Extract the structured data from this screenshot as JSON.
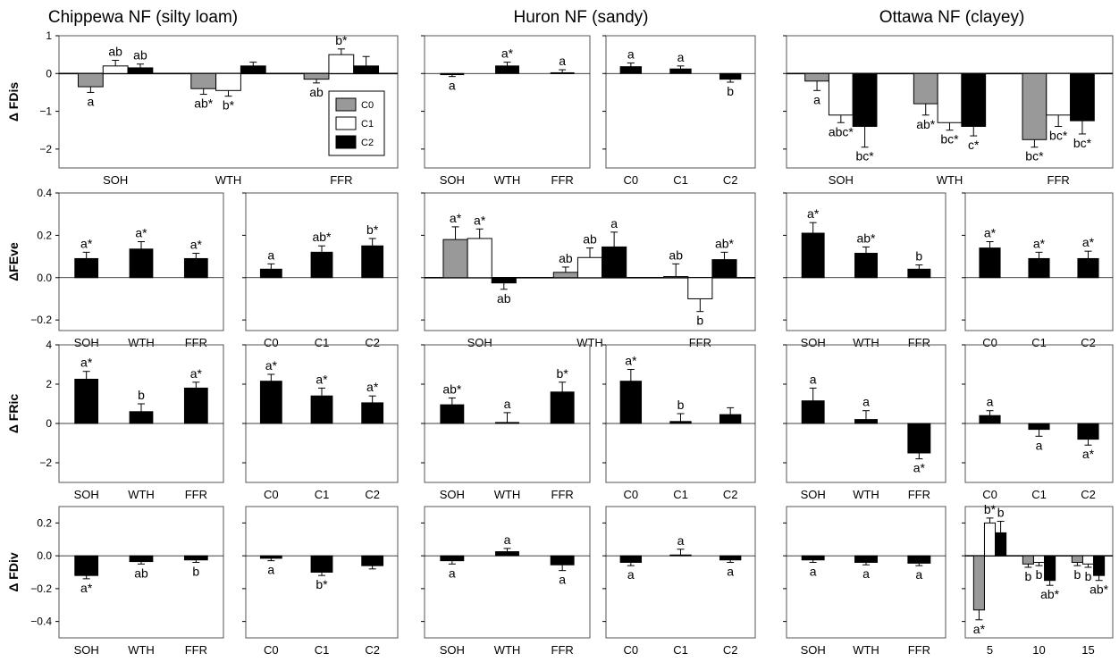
{
  "columns": [
    {
      "title": "Chippewa NF (silty loam)"
    },
    {
      "title": "Huron NF (sandy)"
    },
    {
      "title": "Ottawa NF (clayey)"
    }
  ],
  "colors": {
    "C0": "#999999",
    "C1": "#ffffff",
    "C2": "#000000"
  },
  "legend": {
    "entries": [
      "C0",
      "C1",
      "C2"
    ],
    "placement": "inside top-right of Chippewa FDis panel"
  },
  "chart_data": [
    {
      "id": "chip-fdis",
      "type": "bar",
      "ylabel": "Δ FDis",
      "ylim": [
        -2.5,
        1
      ],
      "yticks": [
        "1",
        "0",
        "−1",
        "−2"
      ],
      "categories": [
        "SOH",
        "WTH",
        "FFR"
      ],
      "grouped": true,
      "series": [
        {
          "name": "C0",
          "values": [
            -0.35,
            -0.4,
            -0.15
          ],
          "err": [
            0.15,
            0.15,
            0.1
          ],
          "labels": [
            "a",
            "ab*",
            "ab"
          ]
        },
        {
          "name": "C1",
          "values": [
            0.2,
            -0.45,
            0.5
          ],
          "err": [
            0.15,
            0.15,
            0.15
          ],
          "labels": [
            "ab",
            "b*",
            "b*"
          ]
        },
        {
          "name": "C2",
          "values": [
            0.15,
            0.2,
            0.2
          ],
          "err": [
            0.1,
            0.1,
            0.25
          ],
          "labels": [
            "ab",
            "",
            ""
          ]
        }
      ]
    },
    {
      "id": "huron-fdis-trt",
      "type": "bar",
      "ylim": [
        -2.5,
        1
      ],
      "categories": [
        "SOH",
        "WTH",
        "FFR"
      ],
      "series": [
        {
          "values": [
            -0.03,
            0.2,
            0.02
          ],
          "err": [
            0.05,
            0.1,
            0.08
          ],
          "labels": [
            "a",
            "a*",
            "a"
          ]
        }
      ]
    },
    {
      "id": "huron-fdis-cut",
      "type": "bar",
      "ylim": [
        -2.5,
        1
      ],
      "categories": [
        "C0",
        "C1",
        "C2"
      ],
      "series": [
        {
          "values": [
            0.18,
            0.12,
            -0.15
          ],
          "err": [
            0.1,
            0.08,
            0.08
          ],
          "labels": [
            "a",
            "a",
            "b"
          ]
        }
      ]
    },
    {
      "id": "ottawa-fdis",
      "type": "bar",
      "ylim": [
        -2.5,
        1
      ],
      "categories": [
        "SOH",
        "WTH",
        "FFR"
      ],
      "grouped": true,
      "series": [
        {
          "name": "C0",
          "values": [
            -0.2,
            -0.8,
            -1.75
          ],
          "err": [
            0.25,
            0.3,
            0.2
          ],
          "labels": [
            "a",
            "ab*",
            "bc*"
          ]
        },
        {
          "name": "C1",
          "values": [
            -1.1,
            -1.3,
            -1.1
          ],
          "err": [
            0.2,
            0.2,
            0.3
          ],
          "labels": [
            "abc*",
            "bc*",
            "bc*"
          ]
        },
        {
          "name": "C2",
          "values": [
            -1.4,
            -1.4,
            -1.25
          ],
          "err": [
            0.55,
            0.25,
            0.35
          ],
          "labels": [
            "bc*",
            "c*",
            "bc*"
          ]
        }
      ]
    },
    {
      "id": "chip-feve-trt",
      "type": "bar",
      "ylabel": "ΔFEve",
      "ylim": [
        -0.25,
        0.4
      ],
      "yticks": [
        "0.4",
        "0.2",
        "0.0",
        "−0.2"
      ],
      "categories": [
        "SOH",
        "WTH",
        "FFR"
      ],
      "series": [
        {
          "values": [
            0.09,
            0.135,
            0.09
          ],
          "err": [
            0.03,
            0.035,
            0.025
          ],
          "labels": [
            "a*",
            "a*",
            "a*"
          ]
        }
      ]
    },
    {
      "id": "chip-feve-cut",
      "type": "bar",
      "ylim": [
        -0.25,
        0.4
      ],
      "categories": [
        "C0",
        "C1",
        "C2"
      ],
      "series": [
        {
          "values": [
            0.04,
            0.12,
            0.15
          ],
          "err": [
            0.025,
            0.03,
            0.035
          ],
          "labels": [
            "a",
            "ab*",
            "b*"
          ]
        }
      ]
    },
    {
      "id": "huron-feve",
      "type": "bar",
      "ylim": [
        -0.25,
        0.4
      ],
      "categories": [
        "SOH",
        "WTH",
        "FFR"
      ],
      "grouped": true,
      "series": [
        {
          "name": "C0",
          "values": [
            0.18,
            0.025,
            0.005
          ],
          "err": [
            0.06,
            0.025,
            0.06
          ],
          "labels": [
            "a*",
            "ab",
            "ab"
          ]
        },
        {
          "name": "C1",
          "values": [
            0.185,
            0.095,
            -0.1
          ],
          "err": [
            0.045,
            0.045,
            0.06
          ],
          "labels": [
            "a*",
            "ab",
            "b"
          ]
        },
        {
          "name": "C2",
          "values": [
            -0.025,
            0.145,
            0.085
          ],
          "err": [
            0.03,
            0.07,
            0.035
          ],
          "labels": [
            "ab",
            "a",
            "ab*"
          ]
        }
      ]
    },
    {
      "id": "ottawa-feve-trt",
      "type": "bar",
      "ylim": [
        -0.25,
        0.4
      ],
      "categories": [
        "SOH",
        "WTH",
        "FFR"
      ],
      "series": [
        {
          "values": [
            0.21,
            0.115,
            0.04
          ],
          "err": [
            0.05,
            0.03,
            0.02
          ],
          "labels": [
            "a*",
            "ab*",
            "b"
          ]
        }
      ]
    },
    {
      "id": "ottawa-feve-cut",
      "type": "bar",
      "ylim": [
        -0.25,
        0.4
      ],
      "categories": [
        "C0",
        "C1",
        "C2"
      ],
      "series": [
        {
          "values": [
            0.14,
            0.09,
            0.09
          ],
          "err": [
            0.03,
            0.03,
            0.035
          ],
          "labels": [
            "a*",
            "a*",
            "a*"
          ]
        }
      ]
    },
    {
      "id": "chip-fric-trt",
      "type": "bar",
      "ylabel": "Δ FRic",
      "ylim": [
        -3,
        4
      ],
      "yticks": [
        "4",
        "2",
        "0",
        "−2"
      ],
      "categories": [
        "SOH",
        "WTH",
        "FFR"
      ],
      "series": [
        {
          "values": [
            2.25,
            0.6,
            1.8
          ],
          "err": [
            0.4,
            0.4,
            0.3
          ],
          "labels": [
            "a*",
            "b",
            "a*"
          ]
        }
      ]
    },
    {
      "id": "chip-fric-cut",
      "type": "bar",
      "ylim": [
        -3,
        4
      ],
      "categories": [
        "C0",
        "C1",
        "C2"
      ],
      "series": [
        {
          "values": [
            2.15,
            1.4,
            1.05
          ],
          "err": [
            0.35,
            0.4,
            0.35
          ],
          "labels": [
            "a*",
            "a*",
            "a*"
          ]
        }
      ]
    },
    {
      "id": "huron-fric-trt",
      "type": "bar",
      "ylim": [
        -3,
        4
      ],
      "categories": [
        "SOH",
        "WTH",
        "FFR"
      ],
      "series": [
        {
          "values": [
            0.95,
            0.05,
            1.6
          ],
          "err": [
            0.35,
            0.5,
            0.5
          ],
          "labels": [
            "ab*",
            "a",
            "b*"
          ]
        }
      ]
    },
    {
      "id": "huron-fric-cut",
      "type": "bar",
      "ylim": [
        -3,
        4
      ],
      "categories": [
        "C0",
        "C1",
        "C2"
      ],
      "series": [
        {
          "values": [
            2.15,
            0.1,
            0.45
          ],
          "err": [
            0.6,
            0.4,
            0.35
          ],
          "labels": [
            "a*",
            "b",
            ""
          ]
        }
      ]
    },
    {
      "id": "ottawa-fric-trt",
      "type": "bar",
      "ylim": [
        -3,
        4
      ],
      "categories": [
        "SOH",
        "WTH",
        "FFR"
      ],
      "series": [
        {
          "values": [
            1.15,
            0.2,
            -1.5
          ],
          "err": [
            0.65,
            0.45,
            0.3
          ],
          "labels": [
            "a",
            "a",
            "a*"
          ]
        }
      ]
    },
    {
      "id": "ottawa-fric-cut",
      "type": "bar",
      "ylim": [
        -3,
        4
      ],
      "categories": [
        "C0",
        "C1",
        "C2"
      ],
      "series": [
        {
          "values": [
            0.4,
            -0.3,
            -0.8
          ],
          "err": [
            0.25,
            0.35,
            0.3
          ],
          "labels": [
            "a",
            "a",
            "a*"
          ]
        }
      ]
    },
    {
      "id": "chip-fdiv-trt",
      "type": "bar",
      "ylabel": "Δ FDiv",
      "ylim": [
        -0.5,
        0.3
      ],
      "yticks": [
        "0.2",
        "0.0",
        "−0.2",
        "−0.4"
      ],
      "categories": [
        "SOH",
        "WTH",
        "FFR"
      ],
      "series": [
        {
          "values": [
            -0.12,
            -0.035,
            -0.025
          ],
          "err": [
            0.02,
            0.015,
            0.015
          ],
          "labels": [
            "a*",
            "ab",
            "b"
          ]
        }
      ]
    },
    {
      "id": "chip-fdiv-cut",
      "type": "bar",
      "ylim": [
        -0.5,
        0.3
      ],
      "categories": [
        "C0",
        "C1",
        "C2"
      ],
      "series": [
        {
          "values": [
            -0.015,
            -0.1,
            -0.06
          ],
          "err": [
            0.015,
            0.02,
            0.02
          ],
          "labels": [
            "a",
            "b*",
            ""
          ]
        }
      ]
    },
    {
      "id": "huron-fdiv-trt",
      "type": "bar",
      "ylim": [
        -0.5,
        0.3
      ],
      "categories": [
        "SOH",
        "WTH",
        "FFR"
      ],
      "series": [
        {
          "values": [
            -0.03,
            0.025,
            -0.055
          ],
          "err": [
            0.02,
            0.02,
            0.035
          ],
          "labels": [
            "a",
            "a",
            "a"
          ]
        }
      ]
    },
    {
      "id": "huron-fdiv-cut",
      "type": "bar",
      "ylim": [
        -0.5,
        0.3
      ],
      "categories": [
        "C0",
        "C1",
        "C2"
      ],
      "series": [
        {
          "values": [
            -0.04,
            0.005,
            -0.025
          ],
          "err": [
            0.02,
            0.035,
            0.015
          ],
          "labels": [
            "a",
            "a",
            "a"
          ]
        }
      ]
    },
    {
      "id": "ottawa-fdiv-trt",
      "type": "bar",
      "ylim": [
        -0.5,
        0.3
      ],
      "categories": [
        "SOH",
        "WTH",
        "FFR"
      ],
      "series": [
        {
          "values": [
            -0.025,
            -0.04,
            -0.045
          ],
          "err": [
            0.015,
            0.015,
            0.015
          ],
          "labels": [
            "a",
            "a",
            "a"
          ]
        }
      ]
    },
    {
      "id": "ottawa-fdiv-years",
      "type": "bar",
      "ylim": [
        -0.5,
        0.3
      ],
      "categories": [
        "5",
        "10",
        "15"
      ],
      "grouped": true,
      "series": [
        {
          "name": "C0",
          "values": [
            -0.33,
            -0.05,
            -0.04
          ],
          "err": [
            0.06,
            0.02,
            0.02
          ],
          "labels": [
            "a*",
            "b",
            "b"
          ]
        },
        {
          "name": "C1",
          "values": [
            0.2,
            -0.04,
            -0.05
          ],
          "err": [
            0.03,
            0.02,
            0.02
          ],
          "labels": [
            "b*",
            "b",
            "b"
          ]
        },
        {
          "name": "C2",
          "values": [
            0.14,
            -0.15,
            -0.12
          ],
          "err": [
            0.07,
            0.03,
            0.03
          ],
          "labels": [
            "b",
            "ab*",
            "ab*"
          ]
        }
      ]
    }
  ]
}
